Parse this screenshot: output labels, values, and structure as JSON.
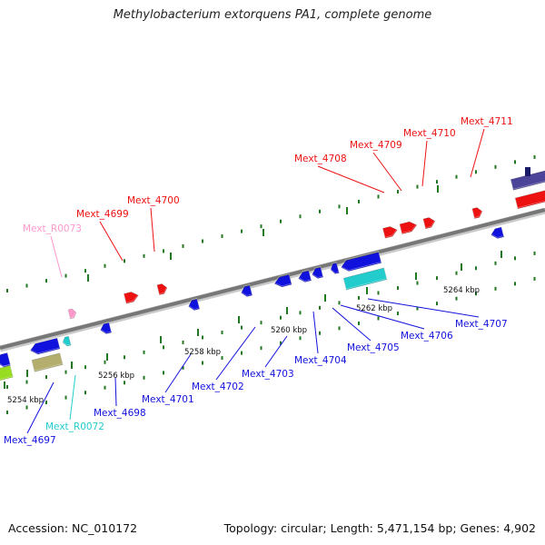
{
  "title": "Methylobacterium extorquens PA1, complete genome",
  "footer": {
    "accession": "Accession: NC_010172",
    "summary": "Topology: circular; Length: 5,471,154 bp; Genes: 4,902"
  },
  "colors": {
    "forward_gene": "#ee1111",
    "reverse_gene": "#1111dd",
    "rna": "#ff99cc",
    "trna": "#22cccc",
    "axis": "#8a8a8a",
    "tick": "#227722"
  },
  "ticks": [
    "5254 kbp",
    "5256 kbp",
    "5258 kbp",
    "5260 kbp",
    "5262 kbp",
    "5264 kbp"
  ],
  "gene_labels": {
    "forward": [
      "Mext_4699",
      "Mext_4700",
      "Mext_4708",
      "Mext_4709",
      "Mext_4710",
      "Mext_4711"
    ],
    "forward_rna": [
      "Mext_R0073"
    ],
    "reverse": [
      "Mext_4697",
      "Mext_4698",
      "Mext_4701",
      "Mext_4702",
      "Mext_4703",
      "Mext_4704",
      "Mext_4705",
      "Mext_4706",
      "Mext_4707"
    ],
    "reverse_rna": [
      "Mext_R0072"
    ]
  }
}
